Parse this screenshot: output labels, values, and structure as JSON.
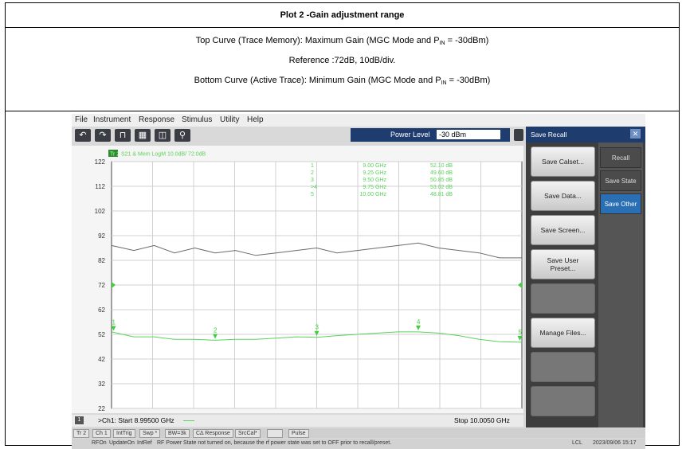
{
  "document": {
    "title": "Plot 2 -Gain adjustment range",
    "line1": {
      "pre": "Top Curve (Trace Memory):  Maximum Gain  (MGC Mode and P",
      "sub": "IN",
      "post": " = -30dBm)"
    },
    "line2": "Reference :72dB, 10dB/div.",
    "line3": {
      "pre": "Bottom Curve (Active Trace):  Minimum Gain (MGC Mode and P",
      "sub": "IN",
      "post": " = -30dBm)"
    }
  },
  "menu": [
    "File",
    "Instrument",
    "Response",
    "Stimulus",
    "Utility",
    "Help"
  ],
  "toolbar": {
    "icons": [
      "undo-icon",
      "redo-icon",
      "marker-icon",
      "preset-icon",
      "trash-icon",
      "zoom-icon"
    ],
    "power_label": "Power Level",
    "power_value": "-30 dBm"
  },
  "trace": {
    "tag": "Tr 2",
    "label": "S21 & Mem LogM 10.0dB/ 72.0dB",
    "markers": [
      {
        "num": "1",
        "freq": "9.00 GHz",
        "value": "52.10 dB"
      },
      {
        "num": "2",
        "freq": "9.25 GHz",
        "value": "49.60 dB"
      },
      {
        "num": "3",
        "freq": "9.50 GHz",
        "value": "50.85 dB"
      },
      {
        "num": ">4",
        "freq": "9.75 GHz",
        "value": "53.02 dB"
      },
      {
        "num": "5",
        "freq": "10.00 GHz",
        "value": "48.81 dB"
      }
    ]
  },
  "chart_data": {
    "type": "line",
    "ylabel": "",
    "yticks": [
      122,
      112,
      102,
      92,
      82,
      72,
      62,
      52,
      42,
      32,
      22
    ],
    "ylim": [
      22,
      122
    ],
    "xlim": [
      8.995,
      10.005
    ],
    "reference": 72,
    "x": [
      8.995,
      9.05,
      9.1,
      9.15,
      9.2,
      9.25,
      9.3,
      9.35,
      9.4,
      9.45,
      9.5,
      9.55,
      9.6,
      9.65,
      9.7,
      9.75,
      9.8,
      9.85,
      9.9,
      9.95,
      10.005
    ],
    "series": [
      {
        "values": [
          88,
          86,
          88,
          85,
          87,
          85,
          86,
          84,
          85,
          86,
          87,
          85,
          86,
          87,
          88,
          89,
          87,
          86,
          85,
          83,
          83
        ],
        "color": "#6a6a6a"
      },
      {
        "values": [
          53,
          51,
          51,
          50,
          50,
          49.6,
          50,
          50,
          50.5,
          51,
          50.8,
          51.5,
          52,
          52.5,
          53,
          53,
          52.5,
          51.5,
          50,
          49,
          48.8
        ],
        "color": "#5ad35a"
      }
    ],
    "marker_x": [
      9.0,
      9.25,
      9.5,
      9.75,
      10.0
    ],
    "marker_labels": [
      "1",
      "2",
      "3",
      "4",
      "5"
    ]
  },
  "status": {
    "channel_num": "1",
    "start": ">Ch1: Start  8.99500 GHz",
    "stop": "Stop  10.0050 GHz"
  },
  "bottom1": [
    "Tr 2",
    "Ch 1",
    "IntTrig",
    "Swp *",
    "BW=3k",
    "CΔ Response",
    "SrcCal*",
    "",
    "Pulse"
  ],
  "bottom2": {
    "items": [
      "RFOn",
      "UpdateOn",
      "IntRef"
    ],
    "message": "RF Power State not turned on, because the rf power state was set to OFF prior to recall/preset.",
    "lcl": "LCL",
    "time": "2023/09/06 15:17"
  },
  "panel": {
    "title": "Save Recall",
    "buttons": [
      "Save Calset...",
      "Save Data...",
      "Save Screen...",
      "Save User\nPreset...",
      "",
      "Manage Files...",
      "",
      ""
    ],
    "tabs": [
      "Recall",
      "Save State",
      "Save Other"
    ],
    "active_tab": "Save Other"
  }
}
